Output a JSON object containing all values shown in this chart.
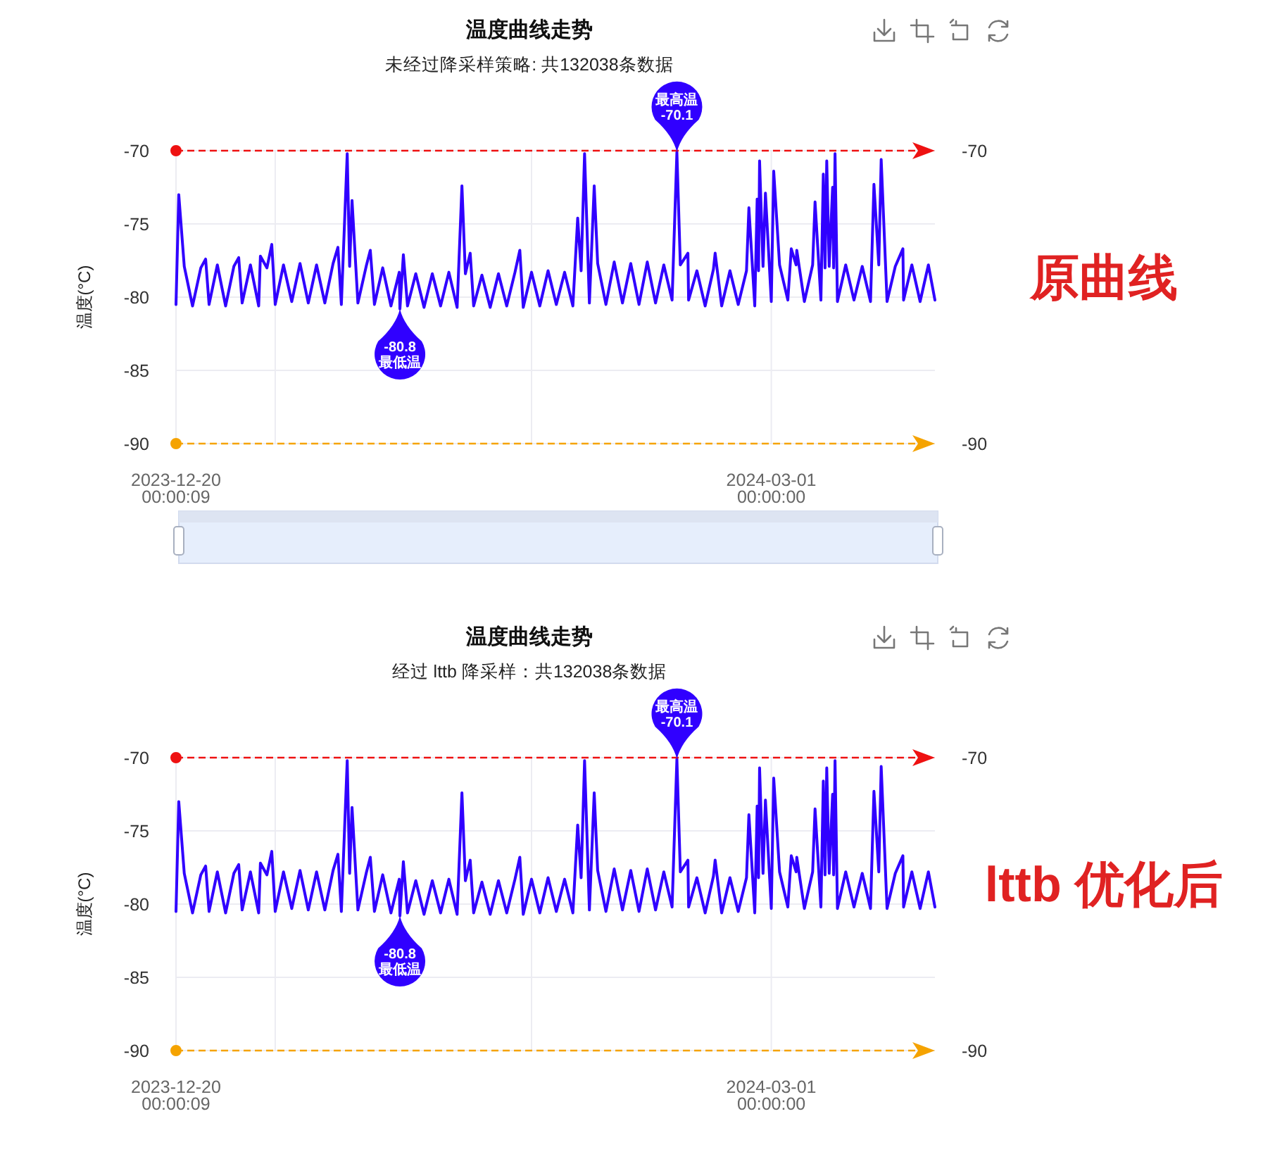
{
  "chart_data": [
    {
      "type": "line",
      "title": "温度曲线走势",
      "subtitle": "未经过降采样策略: 共132038条数据",
      "ylabel": "温度(°C)",
      "annotations": [
        {
          "text": "最高温\n-70.1",
          "x": "2024-02-18T14:00",
          "y": -70.1
        },
        {
          "text": "-80.8\n最低温",
          "x": "2024-01-16T02:00",
          "y": -80.8
        },
        "原曲线"
      ],
      "x": [
        "2023-12-20T00:00:09",
        "2023-12-20T08:00",
        "2023-12-21",
        "2023-12-22",
        "2023-12-23",
        "2023-12-23T14:00",
        "2023-12-24",
        "2023-12-25",
        "2023-12-26",
        "2023-12-27",
        "2023-12-27T14:00",
        "2023-12-28",
        "2023-12-29",
        "2023-12-30",
        "2023-12-30T05:00",
        "2023-12-31",
        "2023-12-31T14:00",
        "2024-01-01",
        "2024-01-02",
        "2024-01-03",
        "2024-01-04",
        "2024-01-05",
        "2024-01-06",
        "2024-01-07",
        "2024-01-08",
        "2024-01-08T14:00",
        "2024-01-09",
        "2024-01-09T17:00",
        "2024-01-10",
        "2024-01-10T07:00",
        "2024-01-11",
        "2024-01-12",
        "2024-01-12T12:00",
        "2024-01-13",
        "2024-01-14",
        "2024-01-15",
        "2024-01-16",
        "2024-01-16T02:00",
        "2024-01-16T12:00",
        "2024-01-17",
        "2024-01-18",
        "2024-01-19",
        "2024-01-20",
        "2024-01-21",
        "2024-01-22",
        "2024-01-23",
        "2024-01-23T14:00",
        "2024-01-24",
        "2024-01-24T14:00",
        "2024-01-25",
        "2024-01-26",
        "2024-01-27",
        "2024-01-28",
        "2024-01-29",
        "2024-01-30",
        "2024-01-30T14:00",
        "2024-01-31",
        "2024-02-01",
        "2024-02-02",
        "2024-02-03",
        "2024-02-04",
        "2024-02-05",
        "2024-02-06",
        "2024-02-06T14:00",
        "2024-02-07",
        "2024-02-07T10:00",
        "2024-02-08",
        "2024-02-08T14:00",
        "2024-02-09",
        "2024-02-10",
        "2024-02-11",
        "2024-02-12",
        "2024-02-13",
        "2024-02-14",
        "2024-02-15",
        "2024-02-16",
        "2024-02-17",
        "2024-02-18",
        "2024-02-18T14:00",
        "2024-02-19",
        "2024-02-19T22:00",
        "2024-02-20",
        "2024-02-21",
        "2024-02-22",
        "2024-02-23",
        "2024-02-23T05:00",
        "2024-02-24",
        "2024-02-25",
        "2024-02-26",
        "2024-02-27",
        "2024-02-27T07:00",
        "2024-02-28",
        "2024-02-28T07:00",
        "2024-02-28T11:00",
        "2024-02-28T14:00",
        "2024-02-29",
        "2024-02-29T07:00",
        "2024-03-01",
        "2024-03-01T07:00",
        "2024-03-02",
        "2024-03-03",
        "2024-03-03T10:00",
        "2024-03-04",
        "2024-03-04T02:00",
        "2024-03-05",
        "2024-03-06",
        "2024-03-06T07:00",
        "2024-03-07",
        "2024-03-07T07:00",
        "2024-03-07T12:00",
        "2024-03-07T17:00",
        "2024-03-08",
        "2024-03-08T10:00",
        "2024-03-08T13:00",
        "2024-03-08T17:00",
        "2024-03-09",
        "2024-03-10",
        "2024-03-11",
        "2024-03-12",
        "2024-03-13",
        "2024-03-13T10:00",
        "2024-03-14",
        "2024-03-14T07:00",
        "2024-03-15",
        "2024-03-16",
        "2024-03-16T22:00",
        "2024-03-17",
        "2024-03-18",
        "2024-03-19",
        "2024-03-20",
        "2024-03-20T19:00"
      ],
      "series": [
        {
          "color": "#3000ff",
          "values": [
            -80.5,
            -73.0,
            -77.9,
            -80.6,
            -78.0,
            -77.4,
            -80.5,
            -77.8,
            -80.6,
            -77.9,
            -77.3,
            -80.4,
            -77.8,
            -80.6,
            -77.2,
            -78.0,
            -76.4,
            -80.5,
            -77.8,
            -80.3,
            -77.7,
            -80.4,
            -77.8,
            -80.4,
            -77.7,
            -76.6,
            -80.5,
            -70.2,
            -77.9,
            -73.4,
            -80.4,
            -77.9,
            -76.8,
            -80.5,
            -78.0,
            -80.6,
            -78.3,
            -80.8,
            -77.1,
            -80.6,
            -78.4,
            -80.7,
            -78.4,
            -80.6,
            -78.3,
            -80.7,
            -72.4,
            -78.4,
            -77.0,
            -80.6,
            -78.5,
            -80.7,
            -78.4,
            -80.6,
            -78.3,
            -76.8,
            -80.7,
            -78.3,
            -80.6,
            -78.2,
            -80.5,
            -78.3,
            -80.6,
            -74.6,
            -78.2,
            -70.2,
            -80.4,
            -72.4,
            -77.7,
            -80.5,
            -77.6,
            -80.4,
            -77.7,
            -80.5,
            -77.6,
            -80.4,
            -77.8,
            -80.2,
            -70.1,
            -77.8,
            -77.0,
            -80.2,
            -78.2,
            -80.6,
            -78.1,
            -77.0,
            -80.6,
            -78.2,
            -80.5,
            -78.2,
            -73.9,
            -80.6,
            -73.3,
            -78.2,
            -70.7,
            -77.9,
            -72.9,
            -80.3,
            -71.4,
            -77.8,
            -80.2,
            -76.7,
            -77.8,
            -76.8,
            -80.3,
            -77.8,
            -73.5,
            -80.2,
            -71.6,
            -78.0,
            -70.7,
            -77.9,
            -72.5,
            -78.0,
            -70.2,
            -80.3,
            -77.8,
            -80.2,
            -77.9,
            -80.3,
            -72.3,
            -77.8,
            -70.6,
            -80.3,
            -77.9,
            -76.7,
            -80.2,
            -77.8,
            -80.3,
            -77.8,
            -80.2
          ]
        }
      ],
      "xlim": [
        "2023-12-20T00:00:09",
        "2024-03-20T19:00"
      ],
      "ylim": [
        -90,
        -70
      ],
      "xticks": [
        {
          "value": "2023-12-20T00:00:09",
          "label": "2023-12-20\n00:00:09"
        },
        {
          "value": "2024-01-01",
          "label": null
        },
        {
          "value": "2024-02-01",
          "label": null
        },
        {
          "value": "2024-03-01",
          "label": "2024-03-01\n00:00:00"
        }
      ],
      "yticks": [
        -90,
        -85,
        -80,
        -75,
        -70
      ],
      "ref_lines": [
        {
          "axis": "y",
          "value": -70,
          "label": "-70",
          "color": "#ee1111",
          "line_style": "dashed"
        },
        {
          "axis": "y",
          "value": -90,
          "label": "-90",
          "color": "#f5a300",
          "line_style": "dashed"
        }
      ],
      "grid": true
    },
    {
      "type": "line",
      "title": "温度曲线走势",
      "subtitle": "经过 lttb 降采样：共132038条数据",
      "ylabel": "温度(°C)",
      "annotations": [
        {
          "text": "最高温\n-70.1",
          "x": "2024-02-18T14:00",
          "y": -70.1
        },
        {
          "text": "-80.8\n最低温",
          "x": "2024-01-16T02:00",
          "y": -80.8
        },
        "lttb 优化后"
      ],
      "x": [
        "2023-12-20T00:00:09",
        "2023-12-20T08:00",
        "2023-12-21",
        "2023-12-22",
        "2023-12-23",
        "2023-12-23T14:00",
        "2023-12-24",
        "2023-12-25",
        "2023-12-26",
        "2023-12-27",
        "2023-12-27T14:00",
        "2023-12-28",
        "2023-12-29",
        "2023-12-30",
        "2023-12-30T05:00",
        "2023-12-31",
        "2023-12-31T14:00",
        "2024-01-01",
        "2024-01-02",
        "2024-01-03",
        "2024-01-04",
        "2024-01-05",
        "2024-01-06",
        "2024-01-07",
        "2024-01-08",
        "2024-01-08T14:00",
        "2024-01-09",
        "2024-01-09T17:00",
        "2024-01-10",
        "2024-01-10T07:00",
        "2024-01-11",
        "2024-01-12",
        "2024-01-12T12:00",
        "2024-01-13",
        "2024-01-14",
        "2024-01-15",
        "2024-01-16",
        "2024-01-16T02:00",
        "2024-01-16T12:00",
        "2024-01-17",
        "2024-01-18",
        "2024-01-19",
        "2024-01-20",
        "2024-01-21",
        "2024-01-22",
        "2024-01-23",
        "2024-01-23T14:00",
        "2024-01-24",
        "2024-01-24T14:00",
        "2024-01-25",
        "2024-01-26",
        "2024-01-27",
        "2024-01-28",
        "2024-01-29",
        "2024-01-30",
        "2024-01-30T14:00",
        "2024-01-31",
        "2024-02-01",
        "2024-02-02",
        "2024-02-03",
        "2024-02-04",
        "2024-02-05",
        "2024-02-06",
        "2024-02-06T14:00",
        "2024-02-07",
        "2024-02-07T10:00",
        "2024-02-08",
        "2024-02-08T14:00",
        "2024-02-09",
        "2024-02-10",
        "2024-02-11",
        "2024-02-12",
        "2024-02-13",
        "2024-02-14",
        "2024-02-15",
        "2024-02-16",
        "2024-02-17",
        "2024-02-18",
        "2024-02-18T14:00",
        "2024-02-19",
        "2024-02-19T22:00",
        "2024-02-20",
        "2024-02-21",
        "2024-02-22",
        "2024-02-23",
        "2024-02-23T05:00",
        "2024-02-24",
        "2024-02-25",
        "2024-02-26",
        "2024-02-27",
        "2024-02-27T07:00",
        "2024-02-28",
        "2024-02-28T07:00",
        "2024-02-28T11:00",
        "2024-02-28T14:00",
        "2024-02-29",
        "2024-02-29T07:00",
        "2024-03-01",
        "2024-03-01T07:00",
        "2024-03-02",
        "2024-03-03",
        "2024-03-03T10:00",
        "2024-03-04",
        "2024-03-04T02:00",
        "2024-03-05",
        "2024-03-06",
        "2024-03-06T07:00",
        "2024-03-07",
        "2024-03-07T07:00",
        "2024-03-07T12:00",
        "2024-03-07T17:00",
        "2024-03-08",
        "2024-03-08T10:00",
        "2024-03-08T13:00",
        "2024-03-08T17:00",
        "2024-03-09",
        "2024-03-10",
        "2024-03-11",
        "2024-03-12",
        "2024-03-13",
        "2024-03-13T10:00",
        "2024-03-14",
        "2024-03-14T07:00",
        "2024-03-15",
        "2024-03-16",
        "2024-03-16T22:00",
        "2024-03-17",
        "2024-03-18",
        "2024-03-19",
        "2024-03-20",
        "2024-03-20T19:00"
      ],
      "series": [
        {
          "color": "#3000ff",
          "values": [
            -80.5,
            -73.0,
            -77.9,
            -80.6,
            -78.0,
            -77.4,
            -80.5,
            -77.8,
            -80.6,
            -77.9,
            -77.3,
            -80.4,
            -77.8,
            -80.6,
            -77.2,
            -78.0,
            -76.4,
            -80.5,
            -77.8,
            -80.3,
            -77.7,
            -80.4,
            -77.8,
            -80.4,
            -77.7,
            -76.6,
            -80.5,
            -70.2,
            -77.9,
            -73.4,
            -80.4,
            -77.9,
            -76.8,
            -80.5,
            -78.0,
            -80.6,
            -78.3,
            -80.8,
            -77.1,
            -80.6,
            -78.4,
            -80.7,
            -78.4,
            -80.6,
            -78.3,
            -80.7,
            -72.4,
            -78.4,
            -77.0,
            -80.6,
            -78.5,
            -80.7,
            -78.4,
            -80.6,
            -78.3,
            -76.8,
            -80.7,
            -78.3,
            -80.6,
            -78.2,
            -80.5,
            -78.3,
            -80.6,
            -74.6,
            -78.2,
            -70.2,
            -80.4,
            -72.4,
            -77.7,
            -80.5,
            -77.6,
            -80.4,
            -77.7,
            -80.5,
            -77.6,
            -80.4,
            -77.8,
            -80.2,
            -70.1,
            -77.8,
            -77.0,
            -80.2,
            -78.2,
            -80.6,
            -78.1,
            -77.0,
            -80.6,
            -78.2,
            -80.5,
            -78.2,
            -73.9,
            -80.6,
            -73.3,
            -78.2,
            -70.7,
            -77.9,
            -72.9,
            -80.3,
            -71.4,
            -77.8,
            -80.2,
            -76.7,
            -77.8,
            -76.8,
            -80.3,
            -77.8,
            -73.5,
            -80.2,
            -71.6,
            -78.0,
            -70.7,
            -77.9,
            -72.5,
            -78.0,
            -70.2,
            -80.3,
            -77.8,
            -80.2,
            -77.9,
            -80.3,
            -72.3,
            -77.8,
            -70.6,
            -80.3,
            -77.9,
            -76.7,
            -80.2,
            -77.8,
            -80.3,
            -77.8,
            -80.2
          ]
        }
      ],
      "xlim": [
        "2023-12-20T00:00:09",
        "2024-03-20T19:00"
      ],
      "ylim": [
        -90,
        -70
      ],
      "xticks": [
        {
          "value": "2023-12-20T00:00:09",
          "label": "2023-12-20\n00:00:09"
        },
        {
          "value": "2024-01-01",
          "label": null
        },
        {
          "value": "2024-02-01",
          "label": null
        },
        {
          "value": "2024-03-01",
          "label": "2024-03-01\n00:00:00"
        }
      ],
      "yticks": [
        -90,
        -85,
        -80,
        -75,
        -70
      ],
      "ref_lines": [
        {
          "axis": "y",
          "value": -70,
          "label": "-70",
          "color": "#ee1111",
          "line_style": "dashed"
        },
        {
          "axis": "y",
          "value": -90,
          "label": "-90",
          "color": "#f5a300",
          "line_style": "dashed"
        }
      ],
      "grid": true
    }
  ]
}
